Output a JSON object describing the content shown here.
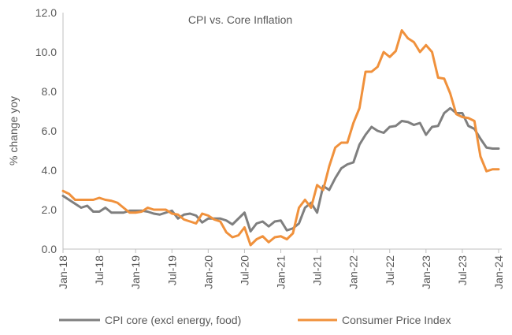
{
  "chart_data": {
    "type": "line",
    "title": "CPI vs. Core Inflation",
    "xlabel": "",
    "ylabel": "% change yoy",
    "ylim": [
      0,
      12
    ],
    "yticks": [
      "0.0",
      "2.0",
      "4.0",
      "6.0",
      "8.0",
      "10.0",
      "12.0"
    ],
    "x_tick_labels": [
      "Jan-18",
      "Jul-18",
      "Jan-19",
      "Jul-19",
      "Jan-20",
      "Jul-20",
      "Jan-21",
      "Jul-21",
      "Jan-22",
      "Jul-22",
      "Jan-23",
      "Jul-23",
      "Jan-24"
    ],
    "x_start": "Jan-18",
    "x_end": "Jan-24",
    "grid": false,
    "legend_position": "bottom",
    "series": [
      {
        "name": "CPI core (excl energy, food)",
        "color": "#7f7f7f",
        "values": [
          2.7,
          2.5,
          2.3,
          2.1,
          2.2,
          1.9,
          1.9,
          2.1,
          1.85,
          1.85,
          1.85,
          1.95,
          1.95,
          1.95,
          1.9,
          1.8,
          1.75,
          1.85,
          1.95,
          1.55,
          1.75,
          1.8,
          1.7,
          1.35,
          1.55,
          1.55,
          1.55,
          1.45,
          1.25,
          1.55,
          1.85,
          0.9,
          1.3,
          1.4,
          1.15,
          1.4,
          1.45,
          0.95,
          1.05,
          1.3,
          2.1,
          2.35,
          1.85,
          3.2,
          3.0,
          3.6,
          4.1,
          4.3,
          4.4,
          5.3,
          5.8,
          6.2,
          6.0,
          5.9,
          6.2,
          6.25,
          6.5,
          6.45,
          6.3,
          6.4,
          5.8,
          6.2,
          6.25,
          6.9,
          7.15,
          6.9,
          6.9,
          6.25,
          6.1,
          5.6,
          5.15,
          5.1,
          5.1
        ]
      },
      {
        "name": "Consumer Price Index",
        "color": "#f0913c",
        "values": [
          2.95,
          2.8,
          2.5,
          2.5,
          2.5,
          2.5,
          2.6,
          2.5,
          2.45,
          2.35,
          2.1,
          1.85,
          1.85,
          1.9,
          2.1,
          2.0,
          2.0,
          2.0,
          1.8,
          1.75,
          1.5,
          1.4,
          1.3,
          1.8,
          1.7,
          1.5,
          1.4,
          0.85,
          0.6,
          0.7,
          1.1,
          0.2,
          0.5,
          0.65,
          0.35,
          0.6,
          0.65,
          0.5,
          0.8,
          2.1,
          2.5,
          2.1,
          3.25,
          3.0,
          4.2,
          5.15,
          5.4,
          5.4,
          6.4,
          7.15,
          9.0,
          9.0,
          9.25,
          10.0,
          9.75,
          10.05,
          11.1,
          10.7,
          10.5,
          10.0,
          10.35,
          10.0,
          8.7,
          8.65,
          7.9,
          6.85,
          6.7,
          6.65,
          6.5,
          4.7,
          3.95,
          4.05,
          4.05
        ]
      }
    ]
  }
}
